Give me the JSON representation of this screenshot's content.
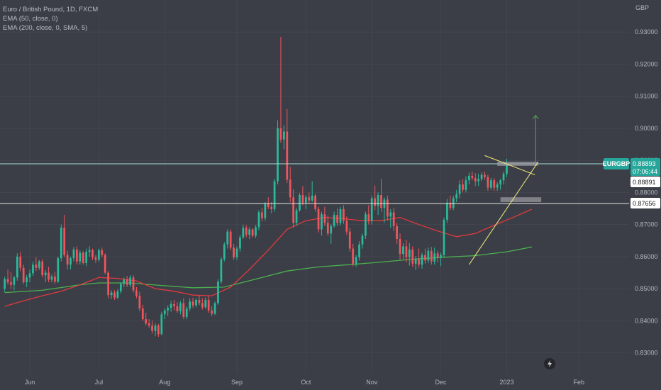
{
  "legend": {
    "title": "Euro / British Pound, 1D, FXCM",
    "ema1": "EMA (50, close, 0)",
    "ema2": "EMA (200, close, 0, SMA, 5)"
  },
  "colors": {
    "background": "#3b3e46",
    "up": "#2bb99a",
    "down": "#f0555e",
    "ema50": "#e03a3e",
    "ema200": "#4caf50",
    "trendline": "#f4ec7b",
    "arrow": "#4caf50",
    "resistance": "#a9dfd7",
    "support": "#e6e6e6",
    "zone": "#9e9ea4"
  },
  "chart_data": {
    "type": "candlestick",
    "symbol": "EURGBP",
    "currency_label": "GBP",
    "y_range": [
      0.8235,
      0.94
    ],
    "y_ticks": [
      "0.93000",
      "0.92000",
      "0.91000",
      "0.90000",
      "0.89000",
      "0.88000",
      "0.87000",
      "0.86000",
      "0.85000",
      "0.84000",
      "0.83000"
    ],
    "x_ticks": [
      {
        "label": "Jun",
        "bar": 8
      },
      {
        "label": "Jul",
        "bar": 30
      },
      {
        "label": "Aug",
        "bar": 51
      },
      {
        "label": "Sep",
        "bar": 74
      },
      {
        "label": "Oct",
        "bar": 96
      },
      {
        "label": "Nov",
        "bar": 117
      },
      {
        "label": "Dec",
        "bar": 139
      },
      {
        "label": "2023",
        "bar": 160
      },
      {
        "label": "Feb",
        "bar": 183
      }
    ],
    "x_bar_range": [
      -1.5,
      199
    ],
    "candles": [
      [
        0.85,
        0.8537,
        0.849,
        0.853
      ],
      [
        0.853,
        0.856,
        0.8512,
        0.852
      ],
      [
        0.852,
        0.8552,
        0.85,
        0.8512
      ],
      [
        0.8512,
        0.854,
        0.8495,
        0.8535
      ],
      [
        0.8535,
        0.861,
        0.8525,
        0.86
      ],
      [
        0.86,
        0.8615,
        0.8555,
        0.8565
      ],
      [
        0.8565,
        0.8575,
        0.8515,
        0.852
      ],
      [
        0.852,
        0.8542,
        0.8505,
        0.8535
      ],
      [
        0.8535,
        0.856,
        0.852,
        0.8548
      ],
      [
        0.8548,
        0.8585,
        0.854,
        0.8575
      ],
      [
        0.8575,
        0.8598,
        0.8555,
        0.8565
      ],
      [
        0.8565,
        0.859,
        0.8558,
        0.8585
      ],
      [
        0.8585,
        0.8592,
        0.8535,
        0.8542
      ],
      [
        0.8542,
        0.8558,
        0.852,
        0.855
      ],
      [
        0.855,
        0.8568,
        0.852,
        0.8528
      ],
      [
        0.8528,
        0.8545,
        0.852,
        0.8538
      ],
      [
        0.8538,
        0.8552,
        0.8515,
        0.8522
      ],
      [
        0.8522,
        0.86,
        0.8518,
        0.8595
      ],
      [
        0.8595,
        0.87,
        0.8585,
        0.869
      ],
      [
        0.869,
        0.873,
        0.8598,
        0.8605
      ],
      [
        0.8605,
        0.8618,
        0.856,
        0.8575
      ],
      [
        0.8575,
        0.86,
        0.856,
        0.8595
      ],
      [
        0.8595,
        0.863,
        0.8585,
        0.8622
      ],
      [
        0.8622,
        0.8632,
        0.8575,
        0.8585
      ],
      [
        0.8585,
        0.862,
        0.8575,
        0.8612
      ],
      [
        0.8612,
        0.8618,
        0.8575,
        0.858
      ],
      [
        0.858,
        0.8625,
        0.857,
        0.8615
      ],
      [
        0.8615,
        0.8632,
        0.86,
        0.862
      ],
      [
        0.862,
        0.8625,
        0.859,
        0.8598
      ],
      [
        0.8598,
        0.8605,
        0.858,
        0.859
      ],
      [
        0.859,
        0.8625,
        0.8585,
        0.862
      ],
      [
        0.862,
        0.8628,
        0.8598,
        0.8605
      ],
      [
        0.8605,
        0.861,
        0.8545,
        0.855
      ],
      [
        0.855,
        0.8555,
        0.847,
        0.848
      ],
      [
        0.848,
        0.8495,
        0.8468,
        0.8488
      ],
      [
        0.8488,
        0.8495,
        0.8465,
        0.8472
      ],
      [
        0.8472,
        0.8498,
        0.8468,
        0.8492
      ],
      [
        0.8492,
        0.852,
        0.8485,
        0.8515
      ],
      [
        0.8515,
        0.8535,
        0.8505,
        0.8528
      ],
      [
        0.8528,
        0.854,
        0.8505,
        0.8512
      ],
      [
        0.8512,
        0.8542,
        0.8505,
        0.8535
      ],
      [
        0.8535,
        0.8542,
        0.8488,
        0.8495
      ],
      [
        0.8495,
        0.8505,
        0.847,
        0.8478
      ],
      [
        0.8478,
        0.849,
        0.843,
        0.8438
      ],
      [
        0.8438,
        0.845,
        0.84,
        0.8405
      ],
      [
        0.8405,
        0.8425,
        0.8385,
        0.8392
      ],
      [
        0.8392,
        0.8405,
        0.8378,
        0.8385
      ],
      [
        0.8385,
        0.84,
        0.836,
        0.8368
      ],
      [
        0.8368,
        0.8392,
        0.8352,
        0.8385
      ],
      [
        0.8385,
        0.839,
        0.835,
        0.8358
      ],
      [
        0.8358,
        0.8428,
        0.8355,
        0.842
      ],
      [
        0.842,
        0.8438,
        0.8405,
        0.8432
      ],
      [
        0.8432,
        0.8448,
        0.8415,
        0.844
      ],
      [
        0.844,
        0.8462,
        0.8428,
        0.8452
      ],
      [
        0.8452,
        0.8465,
        0.8432,
        0.8445
      ],
      [
        0.8445,
        0.8458,
        0.8425,
        0.843
      ],
      [
        0.843,
        0.8462,
        0.842,
        0.8455
      ],
      [
        0.8455,
        0.847,
        0.8405,
        0.8412
      ],
      [
        0.8412,
        0.8445,
        0.8405,
        0.8438
      ],
      [
        0.8438,
        0.847,
        0.843,
        0.846
      ],
      [
        0.846,
        0.8472,
        0.844,
        0.8448
      ],
      [
        0.8448,
        0.847,
        0.8442,
        0.8465
      ],
      [
        0.8465,
        0.8478,
        0.8448,
        0.8455
      ],
      [
        0.8455,
        0.847,
        0.8435,
        0.8442
      ],
      [
        0.8442,
        0.8472,
        0.8438,
        0.8465
      ],
      [
        0.8465,
        0.8478,
        0.8425,
        0.8432
      ],
      [
        0.8432,
        0.8445,
        0.8415,
        0.8422
      ],
      [
        0.8422,
        0.846,
        0.8418,
        0.8455
      ],
      [
        0.8455,
        0.853,
        0.845,
        0.8522
      ],
      [
        0.8522,
        0.8598,
        0.8515,
        0.8592
      ],
      [
        0.8592,
        0.8645,
        0.8585,
        0.8638
      ],
      [
        0.8638,
        0.8685,
        0.8625,
        0.8678
      ],
      [
        0.8678,
        0.8685,
        0.862,
        0.8628
      ],
      [
        0.8628,
        0.864,
        0.859,
        0.8598
      ],
      [
        0.8598,
        0.8632,
        0.859,
        0.8625
      ],
      [
        0.8625,
        0.8668,
        0.8615,
        0.866
      ],
      [
        0.866,
        0.87,
        0.8655,
        0.869
      ],
      [
        0.869,
        0.8698,
        0.866,
        0.8668
      ],
      [
        0.8668,
        0.8692,
        0.8655,
        0.8685
      ],
      [
        0.8685,
        0.8688,
        0.866,
        0.8665
      ],
      [
        0.8665,
        0.8698,
        0.8658,
        0.8692
      ],
      [
        0.8692,
        0.8745,
        0.8682,
        0.8738
      ],
      [
        0.8738,
        0.8752,
        0.871,
        0.872
      ],
      [
        0.872,
        0.877,
        0.8712,
        0.8765
      ],
      [
        0.8765,
        0.8785,
        0.8748,
        0.8755
      ],
      [
        0.8755,
        0.877,
        0.8735,
        0.8748
      ],
      [
        0.8748,
        0.8842,
        0.874,
        0.8835
      ],
      [
        0.8835,
        0.9025,
        0.8825,
        0.9
      ],
      [
        0.9,
        0.9285,
        0.8955,
        0.8965
      ],
      [
        0.8965,
        0.901,
        0.8935,
        0.899
      ],
      [
        0.899,
        0.906,
        0.883,
        0.884
      ],
      [
        0.884,
        0.888,
        0.877,
        0.8785
      ],
      [
        0.8785,
        0.881,
        0.869,
        0.8705
      ],
      [
        0.8705,
        0.8752,
        0.8695,
        0.8745
      ],
      [
        0.8745,
        0.8798,
        0.874,
        0.8792
      ],
      [
        0.8792,
        0.882,
        0.876,
        0.8768
      ],
      [
        0.8768,
        0.8792,
        0.8748,
        0.8785
      ],
      [
        0.8785,
        0.88,
        0.8765,
        0.8775
      ],
      [
        0.8775,
        0.8835,
        0.877,
        0.879
      ],
      [
        0.879,
        0.8795,
        0.874,
        0.8748
      ],
      [
        0.8748,
        0.8755,
        0.8675,
        0.8685
      ],
      [
        0.8685,
        0.874,
        0.8665,
        0.8732
      ],
      [
        0.8732,
        0.8755,
        0.8695,
        0.8705
      ],
      [
        0.8705,
        0.8728,
        0.8665,
        0.8672
      ],
      [
        0.8672,
        0.8702,
        0.864,
        0.8695
      ],
      [
        0.8695,
        0.874,
        0.869,
        0.873
      ],
      [
        0.873,
        0.875,
        0.8695,
        0.8705
      ],
      [
        0.8705,
        0.8755,
        0.8698,
        0.8748
      ],
      [
        0.8748,
        0.876,
        0.8702,
        0.8712
      ],
      [
        0.8712,
        0.8725,
        0.8668,
        0.8678
      ],
      [
        0.8678,
        0.869,
        0.8615,
        0.8625
      ],
      [
        0.8625,
        0.864,
        0.857,
        0.8578
      ],
      [
        0.8578,
        0.8605,
        0.8568,
        0.8598
      ],
      [
        0.8598,
        0.8648,
        0.8588,
        0.8638
      ],
      [
        0.8638,
        0.8672,
        0.8625,
        0.8665
      ],
      [
        0.8665,
        0.874,
        0.8655,
        0.8732
      ],
      [
        0.8732,
        0.876,
        0.87,
        0.8712
      ],
      [
        0.8712,
        0.879,
        0.87,
        0.8782
      ],
      [
        0.8782,
        0.8822,
        0.8745,
        0.8758
      ],
      [
        0.8758,
        0.88,
        0.873,
        0.8792
      ],
      [
        0.8792,
        0.8842,
        0.874,
        0.8752
      ],
      [
        0.8752,
        0.8785,
        0.8705,
        0.8778
      ],
      [
        0.8778,
        0.879,
        0.8712,
        0.8725
      ],
      [
        0.8725,
        0.8748,
        0.869,
        0.8738
      ],
      [
        0.8738,
        0.8752,
        0.868,
        0.8695
      ],
      [
        0.8695,
        0.8705,
        0.864,
        0.8655
      ],
      [
        0.8655,
        0.8672,
        0.859,
        0.8608
      ],
      [
        0.8608,
        0.8642,
        0.8592,
        0.8632
      ],
      [
        0.8632,
        0.8652,
        0.8582,
        0.8598
      ],
      [
        0.8598,
        0.8642,
        0.8572,
        0.8622
      ],
      [
        0.8622,
        0.8632,
        0.8568,
        0.8578
      ],
      [
        0.8578,
        0.8602,
        0.8558,
        0.8592
      ],
      [
        0.8592,
        0.8625,
        0.8565,
        0.8575
      ],
      [
        0.8575,
        0.8612,
        0.8562,
        0.8605
      ],
      [
        0.8605,
        0.8625,
        0.8578,
        0.8588
      ],
      [
        0.8588,
        0.8628,
        0.858,
        0.8618
      ],
      [
        0.8618,
        0.863,
        0.8575,
        0.8585
      ],
      [
        0.8585,
        0.8628,
        0.8575,
        0.861
      ],
      [
        0.861,
        0.8618,
        0.8582,
        0.8598
      ],
      [
        0.8598,
        0.8612,
        0.857,
        0.8605
      ],
      [
        0.8605,
        0.8722,
        0.8598,
        0.8715
      ],
      [
        0.8715,
        0.878,
        0.8705,
        0.8768
      ],
      [
        0.8768,
        0.879,
        0.8745,
        0.8752
      ],
      [
        0.8752,
        0.879,
        0.8745,
        0.8782
      ],
      [
        0.8782,
        0.8808,
        0.877,
        0.8795
      ],
      [
        0.8795,
        0.8838,
        0.8782,
        0.8825
      ],
      [
        0.8825,
        0.8842,
        0.88,
        0.8808
      ],
      [
        0.8808,
        0.885,
        0.88,
        0.8838
      ],
      [
        0.8838,
        0.8862,
        0.8825,
        0.8852
      ],
      [
        0.8852,
        0.8865,
        0.8838,
        0.8845
      ],
      [
        0.8845,
        0.886,
        0.882,
        0.8835
      ],
      [
        0.8835,
        0.8858,
        0.882,
        0.8842
      ],
      [
        0.8842,
        0.8862,
        0.8835,
        0.8855
      ],
      [
        0.8855,
        0.8865,
        0.884,
        0.8848
      ],
      [
        0.8848,
        0.8855,
        0.8805,
        0.8815
      ],
      [
        0.8815,
        0.8845,
        0.8808,
        0.8838
      ],
      [
        0.8838,
        0.8845,
        0.8805,
        0.8815
      ],
      [
        0.8815,
        0.8832,
        0.8805,
        0.8825
      ],
      [
        0.8825,
        0.8842,
        0.8808,
        0.8838
      ],
      [
        0.8838,
        0.8865,
        0.8825,
        0.8858
      ],
      [
        0.8858,
        0.8905,
        0.8848,
        0.8889
      ]
    ],
    "ema50": [
      [
        0,
        0.8445
      ],
      [
        6,
        0.8462
      ],
      [
        12,
        0.8478
      ],
      [
        18,
        0.8492
      ],
      [
        24,
        0.8512
      ],
      [
        30,
        0.8535
      ],
      [
        36,
        0.8532
      ],
      [
        42,
        0.8524
      ],
      [
        48,
        0.85
      ],
      [
        54,
        0.8492
      ],
      [
        60,
        0.848
      ],
      [
        66,
        0.8478
      ],
      [
        72,
        0.8505
      ],
      [
        78,
        0.856
      ],
      [
        84,
        0.862
      ],
      [
        90,
        0.8685
      ],
      [
        96,
        0.8712
      ],
      [
        102,
        0.8722
      ],
      [
        108,
        0.8718
      ],
      [
        114,
        0.8712
      ],
      [
        120,
        0.8712
      ],
      [
        126,
        0.8722
      ],
      [
        132,
        0.87
      ],
      [
        138,
        0.868
      ],
      [
        144,
        0.8662
      ],
      [
        150,
        0.8672
      ],
      [
        156,
        0.8698
      ],
      [
        162,
        0.8722
      ],
      [
        168,
        0.8748
      ]
    ],
    "ema200": [
      [
        0,
        0.8488
      ],
      [
        12,
        0.8495
      ],
      [
        24,
        0.8512
      ],
      [
        30,
        0.8518
      ],
      [
        40,
        0.8518
      ],
      [
        50,
        0.851
      ],
      [
        60,
        0.8503
      ],
      [
        70,
        0.8505
      ],
      [
        80,
        0.853
      ],
      [
        90,
        0.8555
      ],
      [
        100,
        0.8568
      ],
      [
        110,
        0.8575
      ],
      [
        120,
        0.8583
      ],
      [
        130,
        0.8592
      ],
      [
        140,
        0.8598
      ],
      [
        150,
        0.8603
      ],
      [
        160,
        0.8615
      ],
      [
        168,
        0.863
      ]
    ],
    "levels": {
      "resistance": 0.88893,
      "support": 0.87656
    },
    "price_labels": {
      "symbol": "EURGBP",
      "last": "0.88893",
      "countdown": "07:06:44",
      "prev": "0.88891",
      "support_label": "0.87656"
    }
  }
}
